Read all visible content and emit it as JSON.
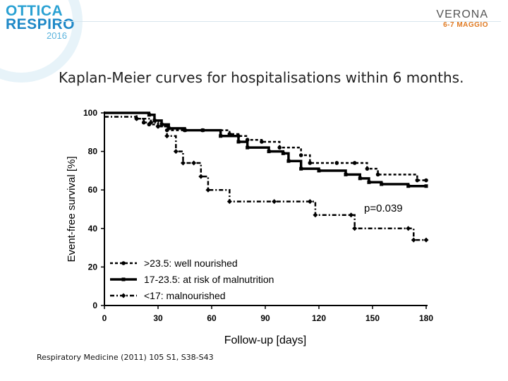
{
  "header": {
    "brand_line1": "OTTICA",
    "brand_line2": "RESPIRO",
    "brand_year": "2016",
    "venue_city": "VERONA",
    "venue_dates": "6-7 MAGGIO"
  },
  "slide": {
    "title": "Kaplan-Meier curves for hospitalisations within 6 months.",
    "citation": "Respiratory Medicine (2011) 105 S1, S38-S43"
  },
  "colors": {
    "brand_blue": "#1e88c7",
    "accent_orange": "#e07a22",
    "line": "#000000"
  },
  "chart_data": {
    "type": "line",
    "step": true,
    "xlabel": "Follow-up [days]",
    "ylabel": "Event-free survival [%]",
    "xlim": [
      0,
      180
    ],
    "ylim": [
      0,
      100
    ],
    "xticks": [
      0,
      30,
      60,
      90,
      120,
      150,
      180
    ],
    "yticks": [
      0,
      20,
      40,
      60,
      80,
      100
    ],
    "grid": false,
    "legend_position": "bottom-left",
    "annotation": "p=0.039",
    "series": [
      {
        "name": ">23.5: well nourished",
        "style": "dotted",
        "x": [
          0,
          18,
          22,
          25,
          30,
          35,
          45,
          55,
          70,
          75,
          80,
          88,
          98,
          110,
          115,
          130,
          140,
          147,
          153,
          175,
          180
        ],
        "y": [
          100,
          97,
          95,
          94,
          93,
          91,
          91,
          91,
          89,
          88,
          86,
          85,
          82,
          78,
          74,
          74,
          74,
          71,
          68,
          65,
          65
        ]
      },
      {
        "name": "17-23.5: at risk of malnutrition",
        "style": "solid",
        "x": [
          0,
          25,
          28,
          32,
          36,
          45,
          55,
          65,
          75,
          80,
          92,
          100,
          103,
          110,
          120,
          135,
          143,
          148,
          155,
          170,
          180
        ],
        "y": [
          100,
          99,
          96,
          94,
          92,
          91,
          91,
          88,
          85,
          82,
          80,
          79,
          75,
          71,
          70,
          68,
          66,
          64,
          63,
          62,
          62
        ]
      },
      {
        "name": "<17: malnourished",
        "style": "dash-dot",
        "x": [
          0,
          18,
          26,
          30,
          35,
          40,
          44,
          50,
          54,
          58,
          70,
          95,
          115,
          118,
          138,
          140,
          170,
          173,
          180
        ],
        "y": [
          98,
          97,
          95,
          93,
          88,
          80,
          74,
          74,
          67,
          60,
          54,
          54,
          54,
          47,
          47,
          40,
          40,
          34,
          34
        ]
      }
    ]
  }
}
